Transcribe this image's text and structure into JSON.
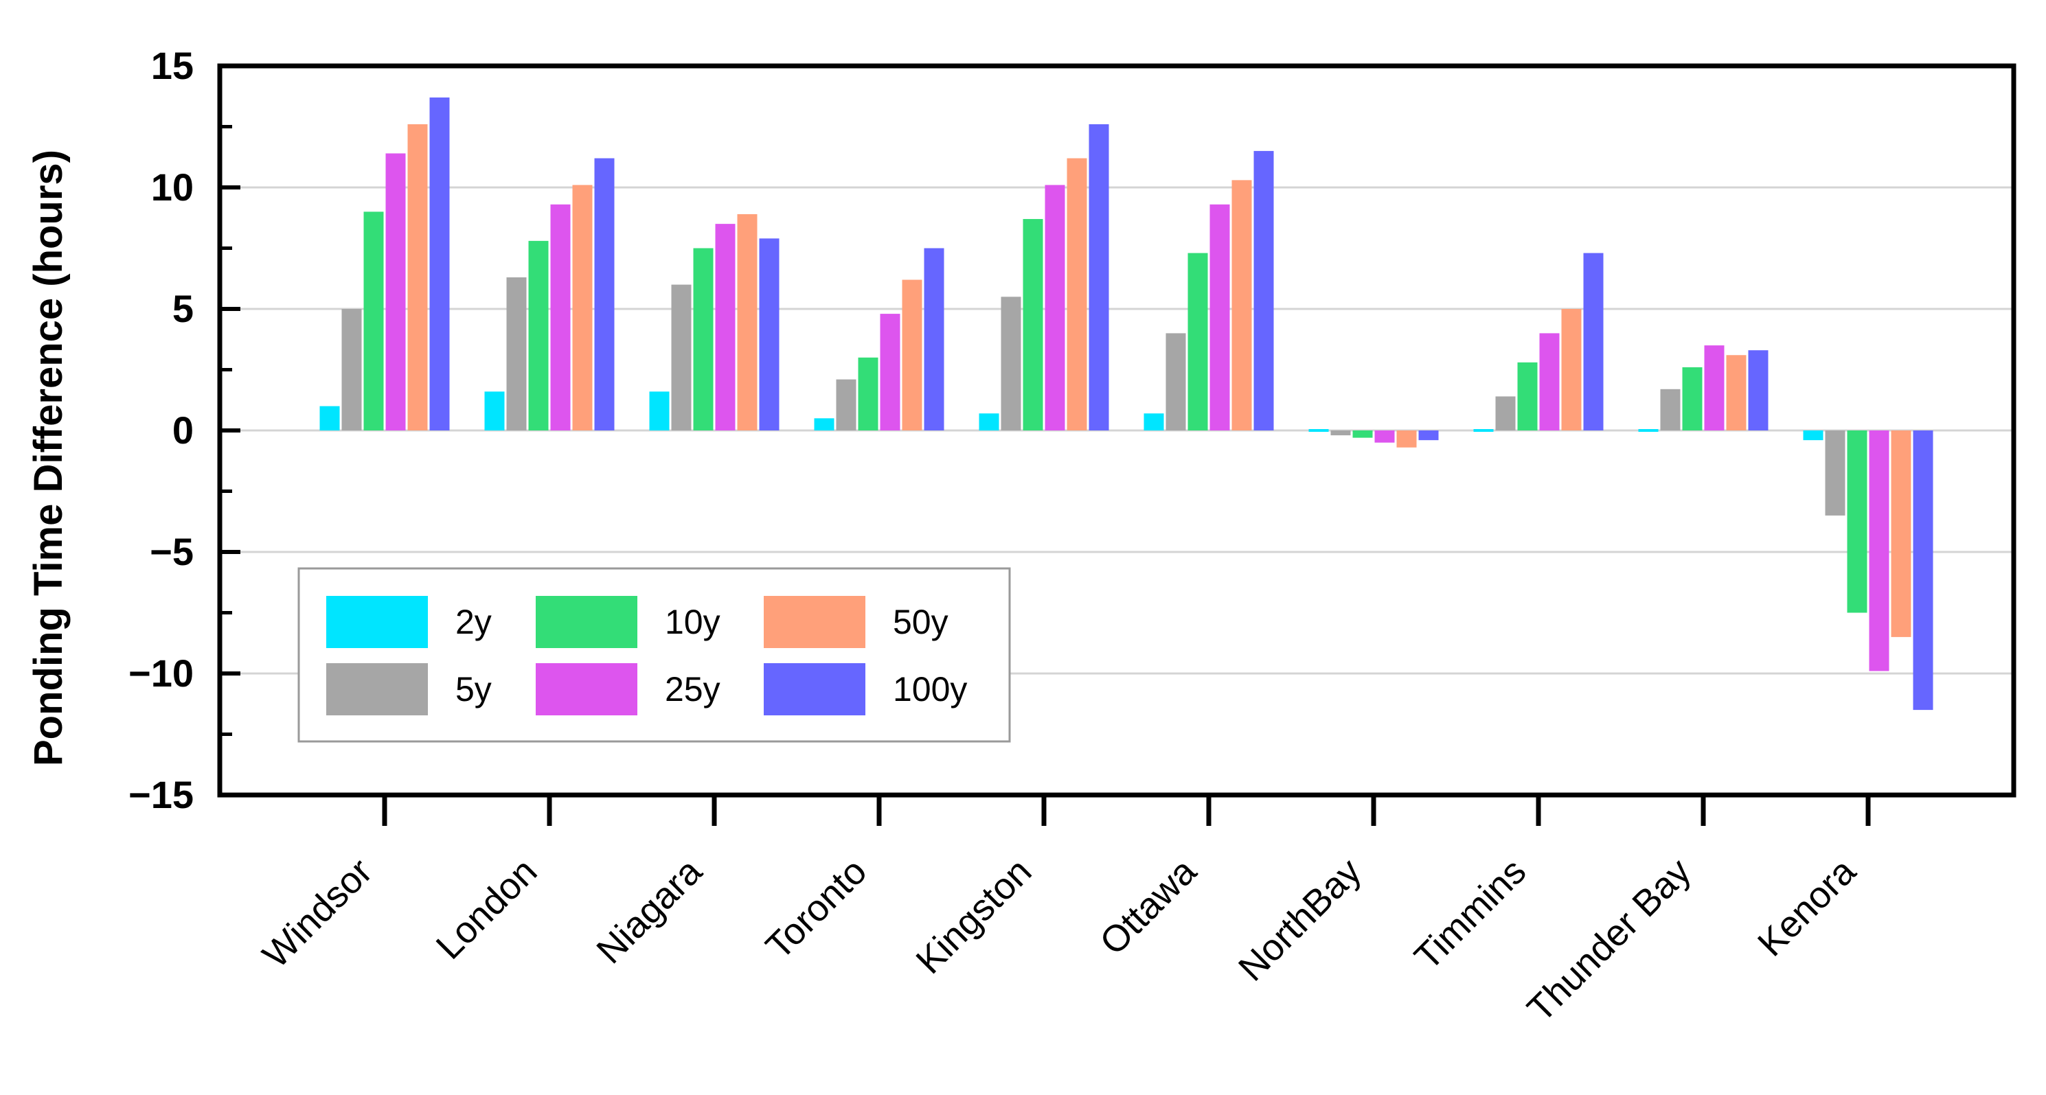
{
  "chart_data": {
    "type": "bar",
    "ylabel": "Ponding Time Difference (hours)",
    "xlabel": "",
    "ylim": [
      -15,
      15
    ],
    "yticks": [
      15,
      10,
      5,
      0,
      -5,
      -10,
      -15
    ],
    "ytick_labels": [
      "15",
      "10",
      "5",
      "0",
      "−5",
      "−10",
      "−15"
    ],
    "grid": true,
    "legend_position": "lower-left",
    "categories": [
      "Windsor",
      "London",
      "Niagara",
      "Toronto",
      "Kingston",
      "Ottawa",
      "NorthBay",
      "Timmins",
      "Thunder Bay",
      "Kenora"
    ],
    "series": [
      {
        "name": "2y",
        "color": "#00E5FF",
        "values": [
          1.0,
          1.6,
          1.6,
          0.5,
          0.7,
          0.7,
          0.0,
          0.0,
          0.0,
          -0.4
        ]
      },
      {
        "name": "5y",
        "color": "#A6A6A6",
        "values": [
          5.0,
          6.3,
          6.0,
          2.1,
          5.5,
          4.0,
          -0.2,
          1.4,
          1.7,
          -3.5
        ]
      },
      {
        "name": "10y",
        "color": "#33DD77",
        "values": [
          9.0,
          7.8,
          7.5,
          3.0,
          8.7,
          7.3,
          -0.3,
          2.8,
          2.6,
          -7.5
        ]
      },
      {
        "name": "25y",
        "color": "#DD55EE",
        "values": [
          11.4,
          9.3,
          8.5,
          4.8,
          10.1,
          9.3,
          -0.5,
          4.0,
          3.5,
          -9.9
        ]
      },
      {
        "name": "50y",
        "color": "#FFA07A",
        "values": [
          12.6,
          10.1,
          8.9,
          6.2,
          11.2,
          10.3,
          -0.7,
          5.0,
          3.1,
          -8.5
        ]
      },
      {
        "name": "100y",
        "color": "#6666FF",
        "values": [
          13.7,
          11.2,
          7.9,
          7.5,
          12.6,
          11.5,
          -0.4,
          7.3,
          3.3,
          -11.5
        ]
      }
    ]
  }
}
